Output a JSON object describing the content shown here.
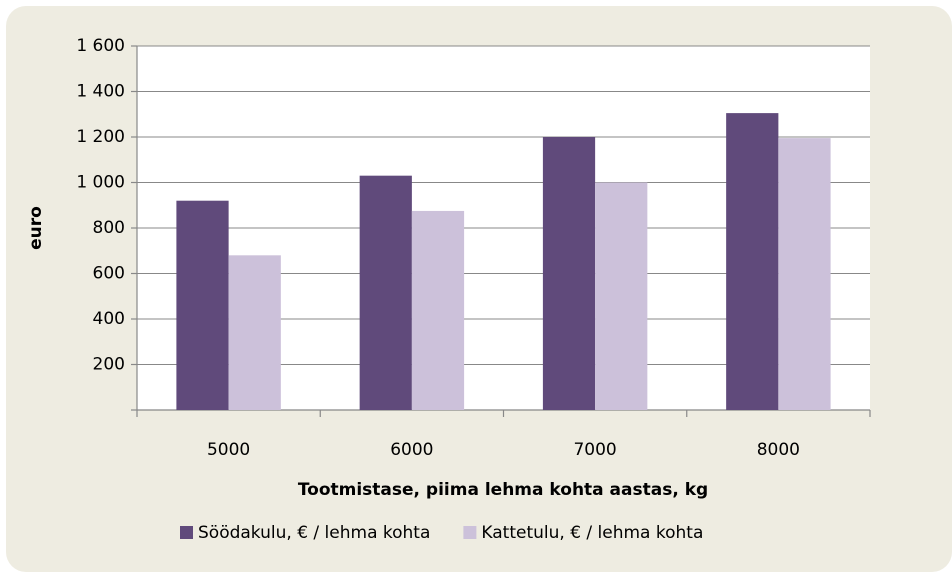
{
  "chart_data": {
    "type": "bar",
    "categories": [
      "5000",
      "6000",
      "7000",
      "8000"
    ],
    "series": [
      {
        "name": "Söödakulu, € / lehma kohta",
        "color": "#604a7b",
        "values": [
          920,
          1030,
          1200,
          1305
        ]
      },
      {
        "name": "Kattetulu, € / lehma kohta",
        "color": "#ccc1da",
        "values": [
          680,
          875,
          1000,
          1195
        ]
      }
    ],
    "ylabel": "euro",
    "xlabel": "Tootmistase, piima lehma kohta aastas,  kg",
    "ylim": [
      0,
      1600
    ],
    "yticks": [
      200,
      400,
      600,
      800,
      {
        "value": 1000,
        "label": "1 000"
      },
      {
        "value": 1200,
        "label": "1 200"
      },
      {
        "value": 1400,
        "label": "1 400"
      },
      {
        "value": 1600,
        "label": "1 600"
      }
    ],
    "grid": true,
    "legend": "bottom"
  }
}
